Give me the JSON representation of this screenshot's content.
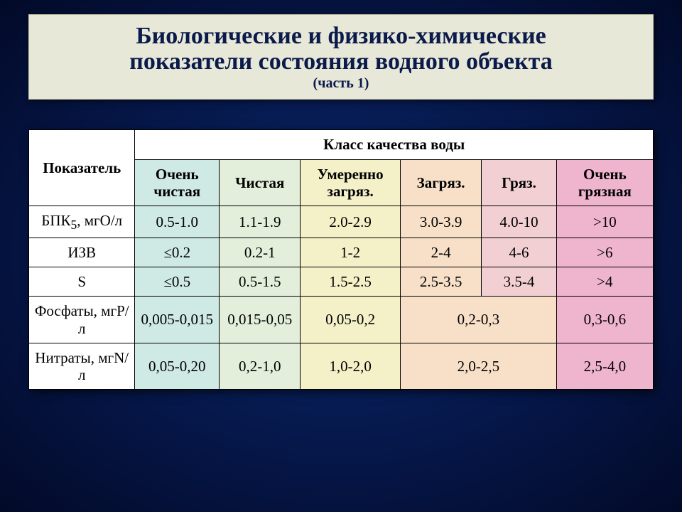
{
  "title": {
    "line1": "Биологические и физико-химические",
    "line2": "показатели состояния водного объекта",
    "subtitle": "(часть 1)"
  },
  "colors": {
    "col1": "#cfe9e4",
    "col2": "#e4efdb",
    "col3": "#f4f0c8",
    "col4": "#f7dfc8",
    "col5": "#f2cfd2",
    "col6": "#efb4ce",
    "header_bg": "#ffffff",
    "row_label_bg": "#ffffff",
    "border": "#000000",
    "title_bg": "#e8e8d8",
    "title_text": "#0a1a4a"
  },
  "table": {
    "header": {
      "indicator": "Показатель",
      "group": "Класс качества воды",
      "cols": [
        "Очень чистая",
        "Чистая",
        "Умеренно загряз.",
        "Загряз.",
        "Гряз.",
        "Очень грязная"
      ]
    },
    "rows": [
      {
        "label_html": "БПК<sub>5</sub>, мгО/л",
        "cells": [
          {
            "text": "0.5-1.0",
            "span": 1
          },
          {
            "text": "1.1-1.9",
            "span": 1
          },
          {
            "text": "2.0-2.9",
            "span": 1
          },
          {
            "text": "3.0-3.9",
            "span": 1
          },
          {
            "text": "4.0-10",
            "span": 1
          },
          {
            "text": ">10",
            "span": 1
          }
        ]
      },
      {
        "label_html": "ИЗВ",
        "cells": [
          {
            "text": "≤0.2",
            "span": 1
          },
          {
            "text": "0.2-1",
            "span": 1
          },
          {
            "text": "1-2",
            "span": 1
          },
          {
            "text": "2-4",
            "span": 1
          },
          {
            "text": "4-6",
            "span": 1
          },
          {
            "text": ">6",
            "span": 1
          }
        ]
      },
      {
        "label_html": "S",
        "cells": [
          {
            "text": "≤0.5",
            "span": 1
          },
          {
            "text": "0.5-1.5",
            "span": 1
          },
          {
            "text": "1.5-2.5",
            "span": 1
          },
          {
            "text": "2.5-3.5",
            "span": 1
          },
          {
            "text": "3.5-4",
            "span": 1
          },
          {
            "text": ">4",
            "span": 1
          }
        ]
      },
      {
        "label_html": "Фосфаты, мгP/л",
        "cells": [
          {
            "text": "0,005-0,015",
            "span": 1
          },
          {
            "text": "0,015-0,05",
            "span": 1
          },
          {
            "text": "0,05-0,2",
            "span": 1
          },
          {
            "text": "0,2-0,3",
            "span": 2
          },
          {
            "text": "0,3-0,6",
            "span": 1
          }
        ]
      },
      {
        "label_html": "Нитраты, мгN/л",
        "cells": [
          {
            "text": "0,05-0,20",
            "span": 1
          },
          {
            "text": "0,2-1,0",
            "span": 1
          },
          {
            "text": "1,0-2,0",
            "span": 1
          },
          {
            "text": "2,0-2,5",
            "span": 2
          },
          {
            "text": "2,5-4,0",
            "span": 1
          }
        ]
      }
    ],
    "col_widths_pct": [
      17,
      13.5,
      13,
      16,
      13,
      12,
      15.5
    ]
  }
}
